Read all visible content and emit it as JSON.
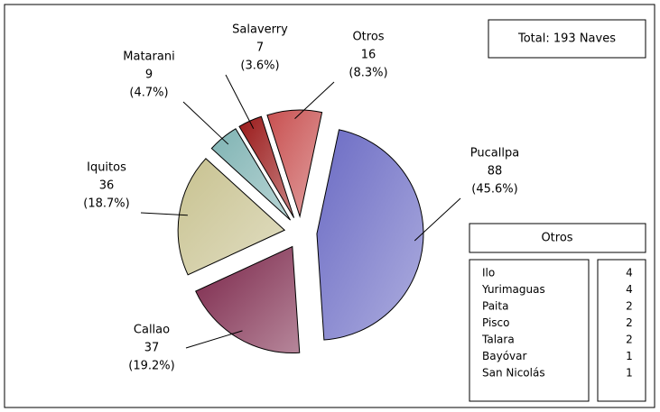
{
  "chart_data": {
    "type": "pie",
    "categories": [
      "Pucallpa",
      "Callao",
      "Iquitos",
      "Matarani",
      "Salaverry",
      "Otros"
    ],
    "values": [
      88,
      37,
      36,
      9,
      7,
      16
    ],
    "percent_labels": [
      "(45.6%)",
      "(19.2%)",
      "(18.7%)",
      "(4.7%)",
      "(3.6%)",
      "(8.3%)"
    ],
    "colors": [
      "#6b6bc4",
      "#7a2448",
      "#c8c290",
      "#7fb3b3",
      "#9a1a1a",
      "#c85050"
    ],
    "total_label": "Total: 193 Naves",
    "otros_table": {
      "title": "Otros",
      "rows": [
        [
          "Ilo",
          "4"
        ],
        [
          "Yurimaguas",
          "4"
        ],
        [
          "Paita",
          "2"
        ],
        [
          "Pisco",
          "2"
        ],
        [
          "Talara",
          "2"
        ],
        [
          "Bayóvar",
          "1"
        ],
        [
          "San Nicolás",
          "1"
        ]
      ]
    }
  }
}
